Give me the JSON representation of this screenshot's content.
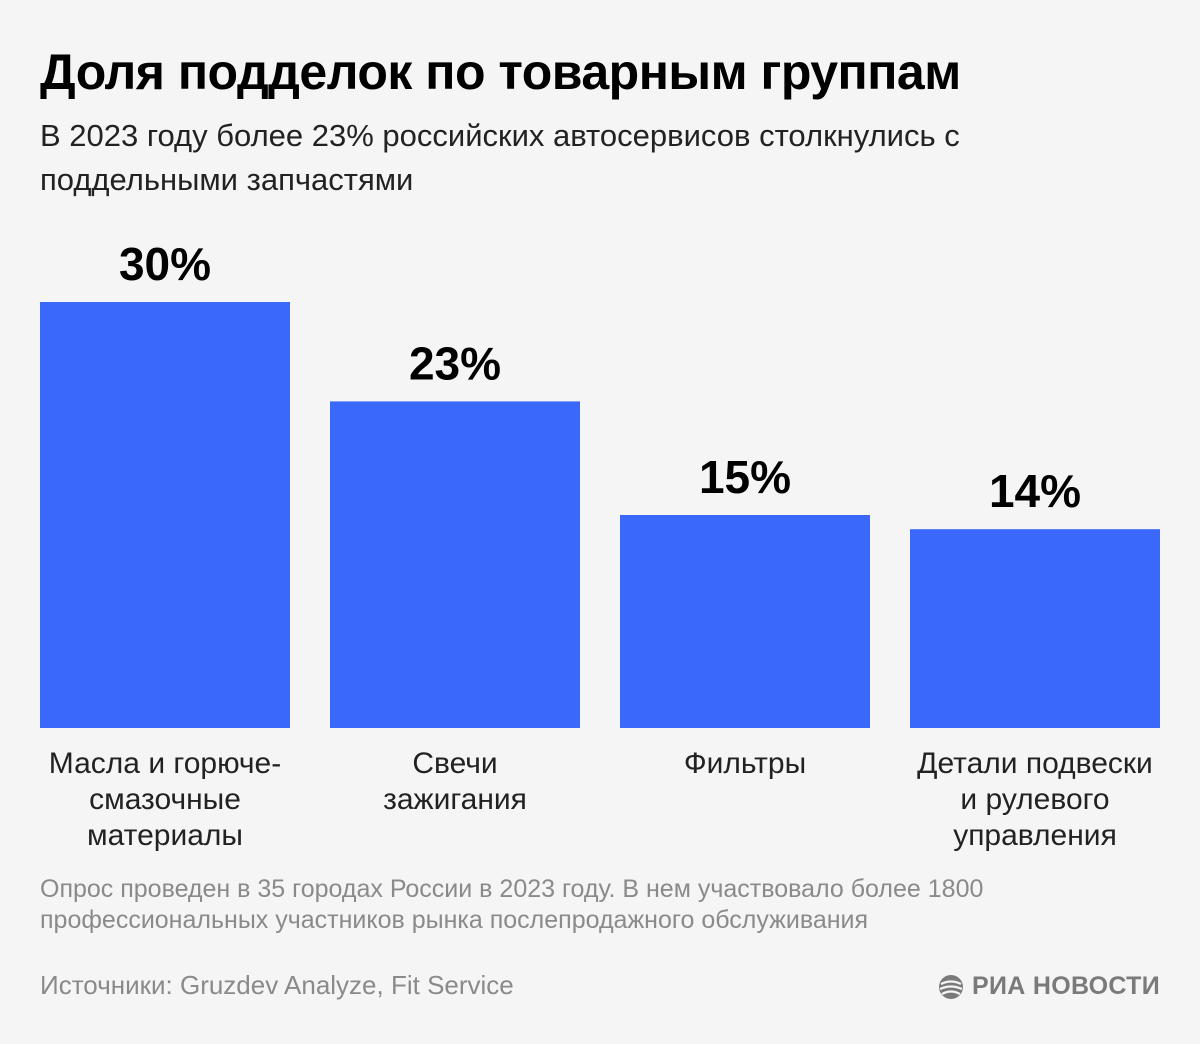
{
  "title": "Доля подделок по товарным группам",
  "subtitle": "В 2023 году более 23% российских автосервисов столкнулись с поддельными запчастями",
  "chart_data": {
    "type": "bar",
    "categories": [
      "Масла и горюче-\nсмазочные\nматериалы",
      "Свечи\nзажигания",
      "Фильтры",
      "Детали подвески\nи рулевого\nуправления"
    ],
    "values": [
      30,
      23,
      15,
      14
    ],
    "value_labels": [
      "30%",
      "23%",
      "15%",
      "14%"
    ],
    "unit": "%",
    "title": "Доля подделок по товарным группам",
    "ylim": [
      0,
      30
    ],
    "grid": false,
    "legend": "none",
    "bar_color": "#3a68fb"
  },
  "note": "Опрос проведен в 35 городах России в 2023 году. В нем участвовало более 1800 профессиональных участников рынка послепродажного обслуживания",
  "source": "Источники: Gruzdev Analyze, Fit Service",
  "logo": {
    "text": "РИА НОВОСТИ",
    "icon": "ria-logo-icon"
  },
  "colors": {
    "background": "#f5f5f5",
    "bar": "#3a68fb",
    "muted_text": "#8a8a8a"
  }
}
